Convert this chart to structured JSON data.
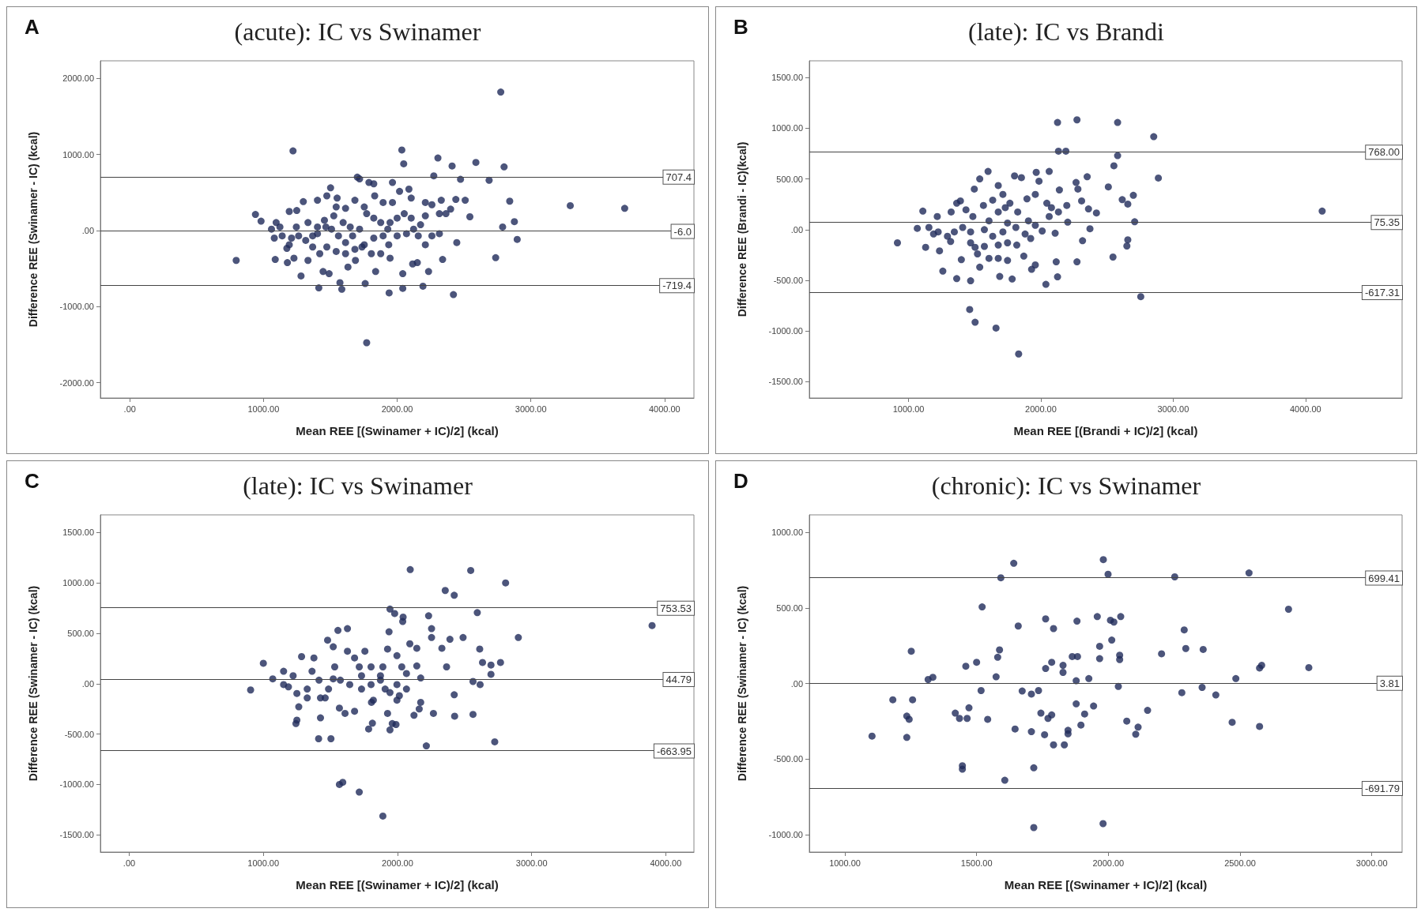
{
  "chart_data": [
    {
      "type": "scatter",
      "title": "(acute): IC vs Swinamer",
      "xlabel": "Mean REE [(Swinamer + IC)/2] (kcal)",
      "ylabel": "Difference REE (Swinamer - IC) (kcal)",
      "annotations": [
        "A"
      ],
      "marker": "circle",
      "grid": false,
      "color": "#1f2a5a",
      "xlim": [
        -220,
        4220
      ],
      "ylim": [
        -2200,
        2230
      ],
      "xticks": [
        {
          "value": 0,
          "label": ".00"
        },
        {
          "value": 1000,
          "label": "1000.00"
        },
        {
          "value": 2000,
          "label": "2000.00"
        },
        {
          "value": 3000,
          "label": "3000.00"
        },
        {
          "value": 4000,
          "label": "4000.00"
        }
      ],
      "yticks": [
        {
          "value": -2000,
          "label": "-2000.00"
        },
        {
          "value": -1000,
          "label": "-1000.00"
        },
        {
          "value": 0,
          "label": ".00"
        },
        {
          "value": 1000,
          "label": "1000.00"
        },
        {
          "value": 2000,
          "label": "2000.00"
        }
      ],
      "ref_lines": [
        {
          "axis": "y",
          "value": 707.4,
          "label": "707.4"
        },
        {
          "axis": "y",
          "value": -6.0,
          "label": "-6.0"
        },
        {
          "axis": "y",
          "value": -719.4,
          "label": "-719.4"
        }
      ],
      "x": [
        2775,
        1221,
        2035,
        2049,
        2305,
        2411,
        2589,
        2800,
        2274,
        2474,
        2688,
        1702,
        1719,
        1789,
        1825,
        1965,
        1502,
        2842,
        3295,
        3702,
        2789,
        2877,
        2898,
        2737,
        796,
        940,
        982,
        1088,
        1179,
        1281,
        1414,
        1586,
        1761,
        1940,
        2042,
        2193,
        2421,
        1772,
        2235,
        2340,
        2446,
        2544,
        2509,
        2439,
        1937,
        2042,
        2116,
        2151,
        1947,
        1839,
        1688,
        1632,
        1572,
        1491,
        1446,
        1333,
        1228,
        1175,
        1081,
        1060,
        1095,
        1123,
        1193,
        1249,
        1298,
        1404,
        1474,
        1551,
        1544,
        1614,
        1684,
        1754,
        1832,
        1895,
        1965,
        2018,
        2088,
        2105,
        2211,
        2260,
        2330,
        2365,
        2400,
        2316,
        2211,
        2175,
        2123,
        2070,
        2000,
        1930,
        1877,
        1825,
        1772,
        1719,
        1667,
        1614,
        1561,
        1509,
        1456,
        1404,
        1368,
        1316,
        1263,
        1210,
        1368,
        1421,
        1474,
        1544,
        1614,
        1684,
        1754,
        1825,
        1895,
        1947,
        2000,
        2053,
        2105,
        2158,
        2211,
        2260,
        2316,
        1877,
        1807,
        1737,
        1649,
        1596,
        1526,
        1467,
        1404,
        1333,
        1246,
        1193,
        1140
      ],
      "values": [
        1819,
        1047,
        1058,
        877,
        953,
        848,
        895,
        836,
        719,
        673,
        661,
        702,
        678,
        632,
        614,
        632,
        561,
        386,
        327,
        292,
        47,
        117,
        -117,
        -357,
        -392,
        211,
        123,
        -380,
        -421,
        -596,
        -754,
        -772,
        -696,
        -819,
        -760,
        -731,
        -842,
        -1474,
        -538,
        -380,
        -158,
        181,
        398,
        409,
        -187,
        -567,
        -439,
        -421,
        -363,
        -538,
        -392,
        -480,
        -684,
        -567,
        -538,
        -392,
        -363,
        -234,
        -99,
        18,
        105,
        47,
        251,
        263,
        380,
        398,
        456,
        427,
        310,
        292,
        398,
        310,
        456,
        368,
        368,
        515,
        544,
        427,
        368,
        339,
        398,
        222,
        281,
        222,
        193,
        76,
        18,
        -41,
        -70,
        18,
        105,
        164,
        222,
        18,
        -70,
        -158,
        -70,
        18,
        135,
        47,
        -70,
        -129,
        -70,
        -99,
        -216,
        -304,
        -216,
        -275,
        -304,
        -246,
        -187,
        -99,
        -70,
        105,
        164,
        222,
        164,
        -70,
        -187,
        -70,
        -41,
        -304,
        -304,
        -216,
        47,
        105,
        193,
        47,
        -41,
        105,
        47,
        -187,
        -70
      ]
    },
    {
      "type": "scatter",
      "title": "(late): IC vs Brandi",
      "xlabel": "Mean REE [(Brandi + IC)/2] (kcal)",
      "ylabel": "Difference REE (Brandi - IC)(kcal)",
      "annotations": [
        "B"
      ],
      "marker": "circle",
      "grid": false,
      "color": "#1f2a5a",
      "xlim": [
        250,
        4730
      ],
      "ylim": [
        -1660,
        1665
      ],
      "xticks": [
        {
          "value": 1000,
          "label": "1000.00"
        },
        {
          "value": 2000,
          "label": "2000.00"
        },
        {
          "value": 3000,
          "label": "3000.00"
        },
        {
          "value": 4000,
          "label": "4000.00"
        }
      ],
      "yticks": [
        {
          "value": -1500,
          "label": "-1500.00"
        },
        {
          "value": -1000,
          "label": "-1000.00"
        },
        {
          "value": -500,
          "label": "-500.00"
        },
        {
          "value": 0,
          "label": ".00"
        },
        {
          "value": 500,
          "label": "500.00"
        },
        {
          "value": 1000,
          "label": "1000.00"
        },
        {
          "value": 1500,
          "label": "1500.00"
        }
      ],
      "ref_lines": [
        {
          "axis": "y",
          "value": 768.0,
          "label": "768.00"
        },
        {
          "axis": "y",
          "value": 75.35,
          "label": "75.35"
        },
        {
          "axis": "y",
          "value": -617.31,
          "label": "-617.31"
        }
      ],
      "x": [
        2126,
        2273,
        2580,
        2853,
        2133,
        2189,
        2580,
        2552,
        2888,
        4126,
        2755,
        1462,
        1503,
        1661,
        1832,
        916,
        1066,
        1108,
        1129,
        1234,
        1259,
        1364,
        1469,
        1689,
        1783,
        2038,
        2126,
        2273,
        2116,
        1930,
        1958,
        1871,
        1748,
        1678,
        1608,
        1538,
        1521,
        1503,
        1399,
        1294,
        1346,
        1224,
        1154,
        1217,
        1322,
        1392,
        1497,
        1601,
        1538,
        1678,
        1801,
        1853,
        1965,
        2063,
        1986,
        2140,
        2266,
        2350,
        2280,
        2308,
        2360,
        2420,
        2510,
        2615,
        2699,
        2657,
        2709,
        2657,
        2650,
        2545,
        2371,
        2315,
        2203,
        2196,
        2080,
        2063,
        2108,
        2010,
        1958,
        1906,
        1881,
        1811,
        1748,
        1713,
        1636,
        1573,
        1608,
        1566,
        1636,
        1713,
        1766,
        1825,
        1895,
        1958,
        2045,
        2133,
        1748,
        1818,
        1923,
        1678,
        1573,
        1469,
        1409,
        1364,
        1434,
        1486,
        1678,
        1731,
        1469,
        1318,
        1189
      ],
      "values": [
        1057,
        1083,
        1057,
        917,
        774,
        774,
        730,
        630,
        509,
        183,
        -661,
        -787,
        -913,
        -970,
        -1226,
        -130,
        13,
        183,
        -174,
        -209,
        -409,
        -483,
        -504,
        -461,
        -487,
        -539,
        -465,
        -317,
        -317,
        -391,
        -348,
        -261,
        -304,
        -283,
        -283,
        -370,
        -239,
        -174,
        -296,
        -65,
        -22,
        -22,
        22,
        130,
        174,
        283,
        400,
        574,
        500,
        435,
        530,
        513,
        565,
        574,
        478,
        391,
        465,
        522,
        400,
        283,
        204,
        165,
        422,
        296,
        339,
        252,
        78,
        -100,
        -161,
        -270,
        9,
        -109,
        74,
        239,
        217,
        130,
        -35,
        -13,
        43,
        87,
        -43,
        22,
        65,
        -22,
        -65,
        0,
        87,
        239,
        291,
        348,
        261,
        174,
        304,
        348,
        261,
        174,
        -130,
        -152,
        -87,
        -152,
        -165,
        -130,
        22,
        261,
        196,
        130,
        174,
        217,
        -22,
        -117,
        -43
      ]
    },
    {
      "type": "scatter",
      "title": "(late): IC vs Swinamer",
      "xlabel": "Mean REE [(Swinamer + IC)/2] (kcal)",
      "ylabel": "Difference REE (Swinamer - IC) (kcal)",
      "annotations": [
        "C"
      ],
      "marker": "circle",
      "grid": false,
      "color": "#1f2a5a",
      "xlim": [
        -215,
        4210
      ],
      "ylim": [
        -1670,
        1675
      ],
      "xticks": [
        {
          "value": 0,
          "label": ".00"
        },
        {
          "value": 1000,
          "label": "1000.00"
        },
        {
          "value": 2000,
          "label": "2000.00"
        },
        {
          "value": 3000,
          "label": "3000.00"
        },
        {
          "value": 4000,
          "label": "4000.00"
        }
      ],
      "yticks": [
        {
          "value": -1500,
          "label": "-1500.00"
        },
        {
          "value": -1000,
          "label": "-1000.00"
        },
        {
          "value": -500,
          "label": "-500.00"
        },
        {
          "value": 0,
          "label": ".00"
        },
        {
          "value": 500,
          "label": "500.00"
        },
        {
          "value": 1000,
          "label": "1000.00"
        },
        {
          "value": 1500,
          "label": "1500.00"
        }
      ],
      "ref_lines": [
        {
          "axis": "y",
          "value": 753.53,
          "label": "753.53"
        },
        {
          "axis": "y",
          "value": 44.79,
          "label": "44.79"
        },
        {
          "axis": "y",
          "value": -663.95,
          "label": "-663.95"
        }
      ],
      "x": [
        2095,
        2546,
        2806,
        2356,
        2423,
        1944,
        1979,
        2042,
        2039,
        2232,
        2595,
        3898,
        2901,
        1937,
        1556,
        1627,
        2254,
        2254,
        2391,
        2489,
        2092,
        2144,
        2331,
        2366,
        2613,
        2634,
        2697,
        2768,
        2697,
        2563,
        2616,
        2423,
        2426,
        2563,
        2268,
        2123,
        2215,
        2725,
        1412,
        1504,
        1567,
        1592,
        1715,
        1891,
        905,
        1000,
        1070,
        1151,
        1151,
        1222,
        1250,
        1250,
        1243,
        1264,
        1285,
        1363,
        1377,
        1426,
        1426,
        1461,
        1479,
        1521,
        1532,
        1521,
        1574,
        1567,
        1609,
        1680,
        1627,
        1680,
        1715,
        1732,
        1757,
        1803,
        1803,
        1820,
        1806,
        1785,
        1813,
        1873,
        1891,
        1926,
        1908,
        1944,
        1926,
        1961,
        1944,
        1989,
        1996,
        2032,
        2067,
        2067,
        2014,
        1996,
        2144,
        2173,
        2173,
        2162,
        1996,
        1873,
        1732,
        1644,
        1486,
        1415,
        1327,
        1187,
        1327
      ],
      "values": [
        1132,
        1123,
        1000,
        925,
        877,
        740,
        696,
        661,
        617,
        674,
        705,
        577,
        458,
        515,
        529,
        546,
        546,
        458,
        441,
        458,
        396,
        352,
        352,
        167,
        344,
        211,
        185,
        211,
        93,
        22,
        -9,
        -110,
        -322,
        -304,
        -295,
        -313,
        -617,
        -577,
        -546,
        -546,
        -1000,
        -978,
        -1075,
        -1313,
        -62,
        203,
        48,
        -9,
        123,
        79,
        -97,
        -361,
        -396,
        -229,
        269,
        123,
        256,
        -141,
        -339,
        -141,
        432,
        366,
        167,
        48,
        35,
        -242,
        -295,
        -273,
        322,
        256,
        167,
        79,
        322,
        167,
        -9,
        -163,
        -185,
        -449,
        -392,
        79,
        167,
        344,
        -53,
        -88,
        -295,
        -396,
        -458,
        -405,
        278,
        167,
        101,
        -53,
        -119,
        -163,
        176,
        57,
        -185,
        -251,
        -9,
        35,
        -53,
        -9,
        -53,
        35,
        -53,
        -31,
        -141
      ]
    },
    {
      "type": "scatter",
      "title": "(chronic): IC vs Swinamer",
      "xlabel": "Mean REE [(Swinamer + IC)/2] (kcal)",
      "ylabel": "Difference REE (Swinamer - IC) (kcal)",
      "annotations": [
        "D"
      ],
      "marker": "circle",
      "grid": false,
      "color": "#1f2a5a",
      "xlim": [
        865,
        3115
      ],
      "ylim": [
        -1115,
        1115
      ],
      "xticks": [
        {
          "value": 1000,
          "label": "1000.00"
        },
        {
          "value": 1500,
          "label": "1500.00"
        },
        {
          "value": 2000,
          "label": "2000.00"
        },
        {
          "value": 2500,
          "label": "2500.00"
        },
        {
          "value": 3000,
          "label": "3000.00"
        }
      ],
      "yticks": [
        {
          "value": -1000,
          "label": "-1000.00"
        },
        {
          "value": -500,
          "label": "-500.00"
        },
        {
          "value": 0,
          "label": ".00"
        },
        {
          "value": 500,
          "label": "500.00"
        },
        {
          "value": 1000,
          "label": "1000.00"
        }
      ],
      "ref_lines": [
        {
          "axis": "y",
          "value": 699.41,
          "label": "699.41"
        },
        {
          "axis": "y",
          "value": 3.81,
          "label": "3.81"
        },
        {
          "axis": "y",
          "value": -691.79,
          "label": "-691.79"
        }
      ],
      "x": [
        1641,
        1981,
        1999,
        2534,
        2252,
        1592,
        1521,
        2684,
        1658,
        1762,
        1792,
        1881,
        1958,
        2008,
        2021,
        2047,
        2013,
        1967,
        2288,
        2294,
        2360,
        2202,
        2043,
        2043,
        1967,
        1863,
        1883,
        1587,
        1580,
        1252,
        1500,
        1459,
        1574,
        1785,
        1762,
        1828,
        1828,
        1926,
        1878,
        2484,
        2574,
        2582,
        2761,
        1316,
        1334,
        1182,
        1257,
        1235,
        1244,
        1103,
        1235,
        1419,
        1435,
        1464,
        1471,
        1517,
        1542,
        1673,
        1708,
        1735,
        1744,
        1771,
        1785,
        1646,
        1708,
        1758,
        1792,
        1833,
        1847,
        1847,
        1896,
        1910,
        1878,
        1944,
        2038,
        2070,
        2113,
        2104,
        2149,
        2279,
        2356,
        2408,
        2470,
        2574,
        1446,
        1446,
        1717,
        1607,
        1717,
        1980
      ],
      "values": [
        795,
        819,
        722,
        731,
        705,
        699,
        506,
        491,
        380,
        427,
        363,
        412,
        442,
        418,
        406,
        442,
        287,
        246,
        354,
        231,
        225,
        196,
        187,
        158,
        164,
        178,
        178,
        222,
        173,
        213,
        140,
        114,
        44,
        140,
        99,
        120,
        73,
        32,
        18,
        32,
        102,
        120,
        105,
        26,
        41,
        -108,
        -108,
        -216,
        -237,
        -348,
        -357,
        -196,
        -231,
        -231,
        -161,
        -47,
        -237,
        -50,
        -70,
        -47,
        -196,
        -231,
        -208,
        -301,
        -319,
        -339,
        -406,
        -406,
        -333,
        -310,
        -275,
        -202,
        -135,
        -149,
        -20,
        -249,
        -289,
        -336,
        -178,
        -61,
        -26,
        -76,
        -257,
        -284,
        -544,
        -567,
        -558,
        -640,
        -953,
        -927
      ]
    }
  ]
}
